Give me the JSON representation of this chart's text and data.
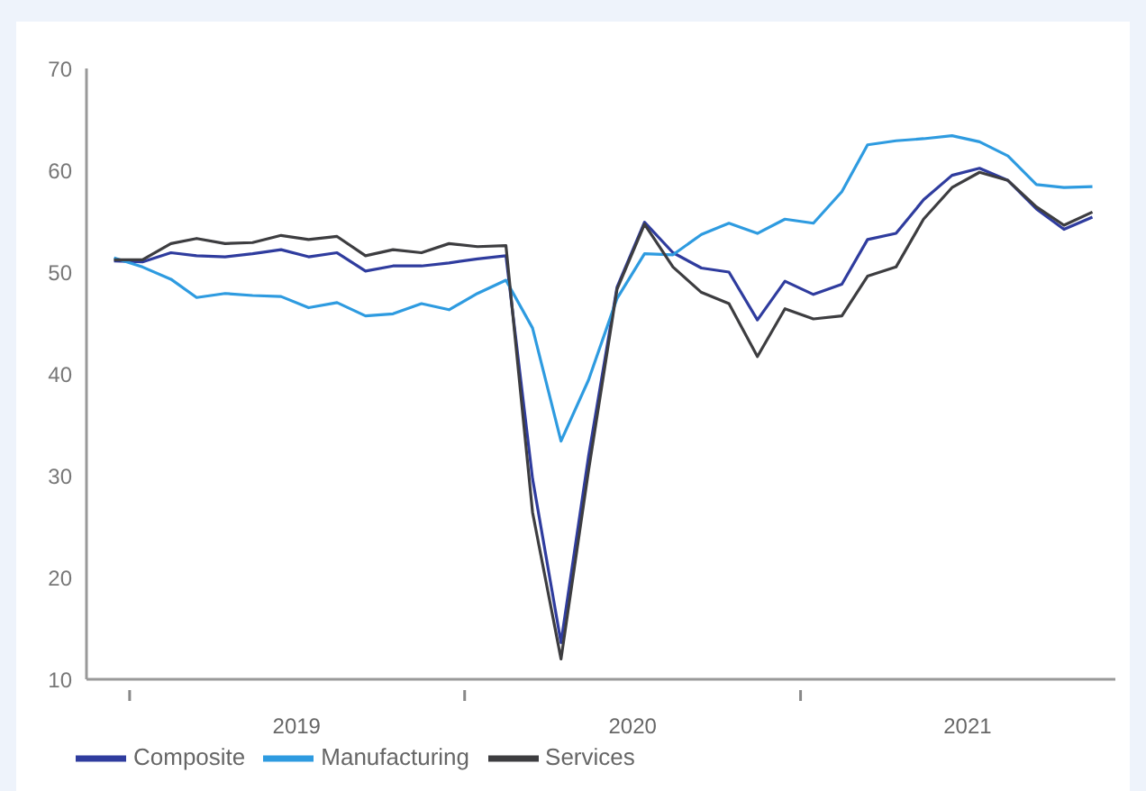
{
  "chart_data": {
    "type": "line",
    "x": [
      "2018-12-15",
      "2019-01-15",
      "2019-02-15",
      "2019-03-15",
      "2019-04-15",
      "2019-05-15",
      "2019-06-15",
      "2019-07-15",
      "2019-08-15",
      "2019-09-15",
      "2019-10-15",
      "2019-11-15",
      "2019-12-15",
      "2020-01-15",
      "2020-02-15",
      "2020-03-15",
      "2020-04-15",
      "2020-05-15",
      "2020-06-15",
      "2020-07-15",
      "2020-08-15",
      "2020-09-15",
      "2020-10-15",
      "2020-11-15",
      "2020-12-15",
      "2021-01-15",
      "2021-02-15",
      "2021-03-15",
      "2021-04-15",
      "2021-05-15",
      "2021-06-15",
      "2021-07-15",
      "2021-08-15",
      "2021-09-15",
      "2021-10-15",
      "2021-11-15"
    ],
    "series": [
      {
        "name": "Composite",
        "color": "#2f3c9e",
        "values": [
          51.1,
          51.0,
          51.9,
          51.6,
          51.5,
          51.8,
          52.2,
          51.5,
          51.9,
          50.1,
          50.6,
          50.6,
          50.9,
          51.3,
          51.6,
          29.7,
          13.6,
          31.9,
          48.5,
          54.9,
          51.9,
          50.4,
          50.0,
          45.3,
          49.1,
          47.8,
          48.8,
          53.2,
          53.8,
          57.1,
          59.5,
          60.2,
          59.0,
          56.2,
          54.2,
          55.4
        ]
      },
      {
        "name": "Manufacturing",
        "color": "#2e9be0",
        "values": [
          51.4,
          50.5,
          49.3,
          47.5,
          47.9,
          47.7,
          47.6,
          46.5,
          47.0,
          45.7,
          45.9,
          46.9,
          46.3,
          47.9,
          49.2,
          44.5,
          33.4,
          39.4,
          47.4,
          51.8,
          51.7,
          53.7,
          54.8,
          53.8,
          55.2,
          54.8,
          57.9,
          62.5,
          62.9,
          63.1,
          63.4,
          62.8,
          61.4,
          58.6,
          58.3,
          58.4
        ]
      },
      {
        "name": "Services",
        "color": "#3d3d40",
        "values": [
          51.2,
          51.2,
          52.8,
          53.3,
          52.8,
          52.9,
          53.6,
          53.2,
          53.5,
          51.6,
          52.2,
          51.9,
          52.8,
          52.5,
          52.6,
          26.4,
          12.0,
          30.5,
          48.3,
          54.7,
          50.5,
          48.0,
          46.9,
          41.7,
          46.4,
          45.4,
          45.7,
          49.6,
          50.5,
          55.2,
          58.3,
          59.8,
          59.0,
          56.4,
          54.6,
          55.9
        ]
      }
    ],
    "xlim": [
      "2018-11-15",
      "2021-12-10"
    ],
    "xticks": [
      {
        "value": "2019-01-01",
        "label": null
      },
      {
        "value": "2019-07-02",
        "label": "2019"
      },
      {
        "value": "2020-01-01",
        "label": null
      },
      {
        "value": "2020-07-02",
        "label": "2020"
      },
      {
        "value": "2021-01-01",
        "label": null
      },
      {
        "value": "2021-07-02",
        "label": "2021"
      }
    ],
    "ylim": [
      10,
      70
    ],
    "yticks": [
      10,
      20,
      30,
      40,
      50,
      60,
      70
    ],
    "grid": false,
    "legend": "bottom left",
    "marker": "none",
    "line_style": "solid"
  }
}
